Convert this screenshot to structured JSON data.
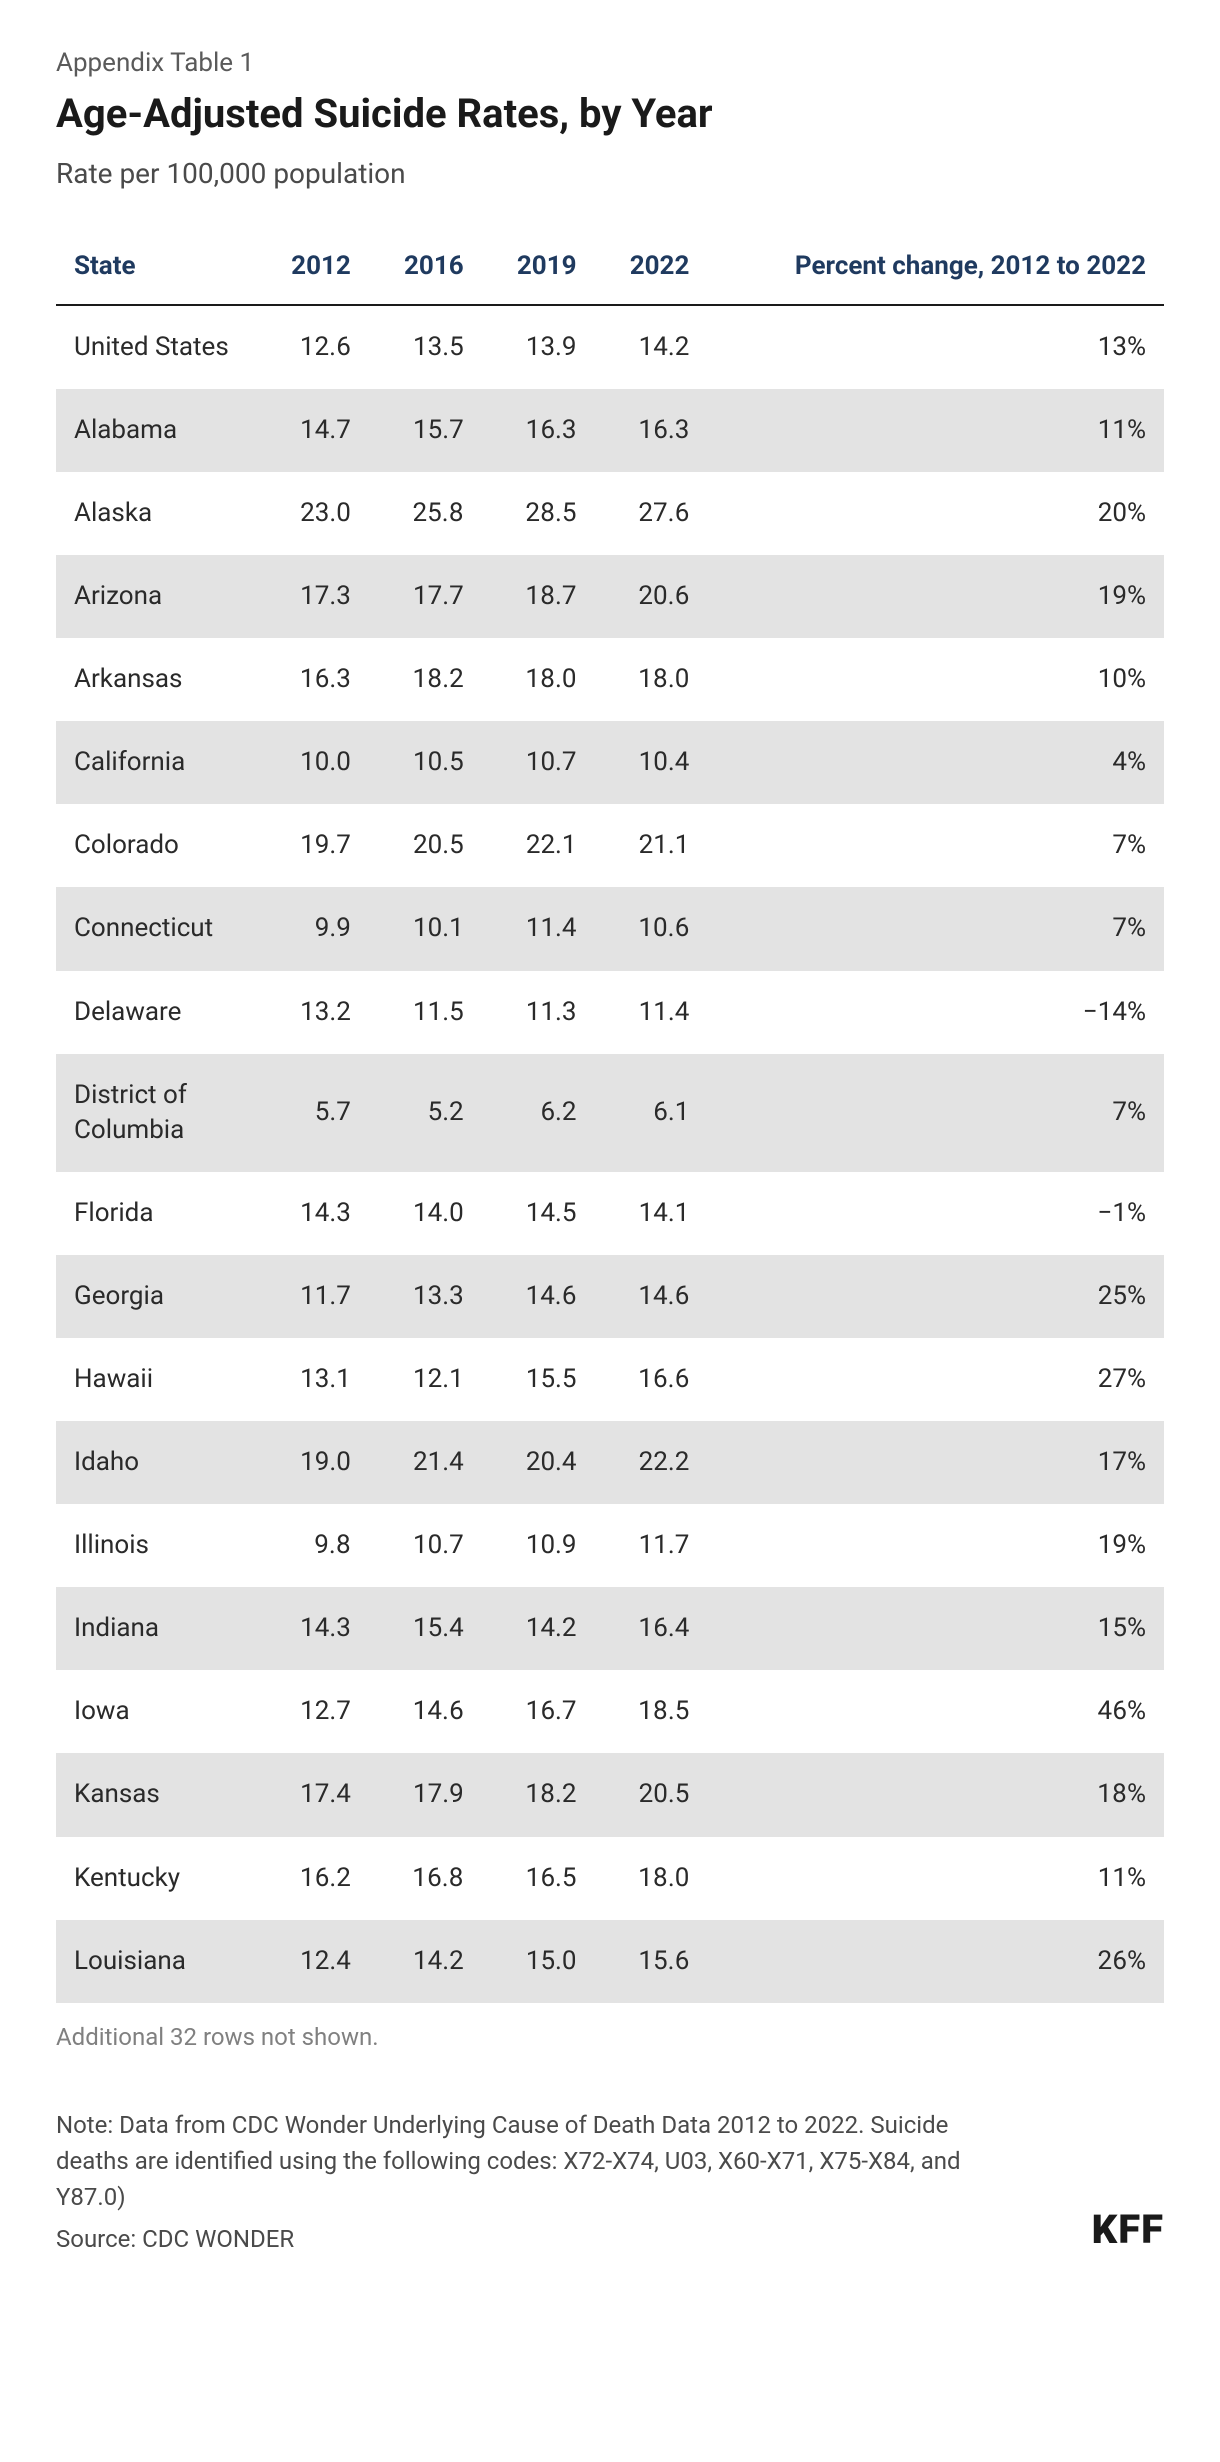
{
  "header": {
    "supertitle": "Appendix Table 1",
    "title": "Age-Adjusted Suicide Rates, by Year",
    "subtitle": "Rate per 100,000 population"
  },
  "table": {
    "columns": [
      "State",
      "2012",
      "2016",
      "2019",
      "2022",
      "Percent change, 2012 to 2022"
    ],
    "column_alignments": [
      "left",
      "right",
      "right",
      "right",
      "right",
      "right"
    ],
    "header_color": "#1f3a5f",
    "header_fontsize": 26,
    "body_fontsize": 26,
    "row_shade_color": "#e3e3e3",
    "background_color": "#ffffff",
    "border_color": "#1a1a1a",
    "rows": [
      [
        "United States",
        "12.6",
        "13.5",
        "13.9",
        "14.2",
        "13%"
      ],
      [
        "Alabama",
        "14.7",
        "15.7",
        "16.3",
        "16.3",
        "11%"
      ],
      [
        "Alaska",
        "23.0",
        "25.8",
        "28.5",
        "27.6",
        "20%"
      ],
      [
        "Arizona",
        "17.3",
        "17.7",
        "18.7",
        "20.6",
        "19%"
      ],
      [
        "Arkansas",
        "16.3",
        "18.2",
        "18.0",
        "18.0",
        "10%"
      ],
      [
        "California",
        "10.0",
        "10.5",
        "10.7",
        "10.4",
        "4%"
      ],
      [
        "Colorado",
        "19.7",
        "20.5",
        "22.1",
        "21.1",
        "7%"
      ],
      [
        "Connecticut",
        "9.9",
        "10.1",
        "11.4",
        "10.6",
        "7%"
      ],
      [
        "Delaware",
        "13.2",
        "11.5",
        "11.3",
        "11.4",
        "−14%"
      ],
      [
        "District of Columbia",
        "5.7",
        "5.2",
        "6.2",
        "6.1",
        "7%"
      ],
      [
        "Florida",
        "14.3",
        "14.0",
        "14.5",
        "14.1",
        "−1%"
      ],
      [
        "Georgia",
        "11.7",
        "13.3",
        "14.6",
        "14.6",
        "25%"
      ],
      [
        "Hawaii",
        "13.1",
        "12.1",
        "15.5",
        "16.6",
        "27%"
      ],
      [
        "Idaho",
        "19.0",
        "21.4",
        "20.4",
        "22.2",
        "17%"
      ],
      [
        "Illinois",
        "9.8",
        "10.7",
        "10.9",
        "11.7",
        "19%"
      ],
      [
        "Indiana",
        "14.3",
        "15.4",
        "14.2",
        "16.4",
        "15%"
      ],
      [
        "Iowa",
        "12.7",
        "14.6",
        "16.7",
        "18.5",
        "46%"
      ],
      [
        "Kansas",
        "17.4",
        "17.9",
        "18.2",
        "20.5",
        "18%"
      ],
      [
        "Kentucky",
        "16.2",
        "16.8",
        "16.5",
        "18.0",
        "11%"
      ],
      [
        "Louisiana",
        "12.4",
        "14.2",
        "15.0",
        "15.6",
        "26%"
      ]
    ]
  },
  "overflow_note": "Additional 32 rows not shown.",
  "footer": {
    "note": "Note: Data from CDC Wonder Underlying Cause of Death Data 2012 to 2022. Suicide deaths are identified using the following codes: X72-X74, U03, X60-X71, X75-X84, and Y87.0)",
    "source": "Source: CDC WONDER",
    "logo": "KFF"
  }
}
